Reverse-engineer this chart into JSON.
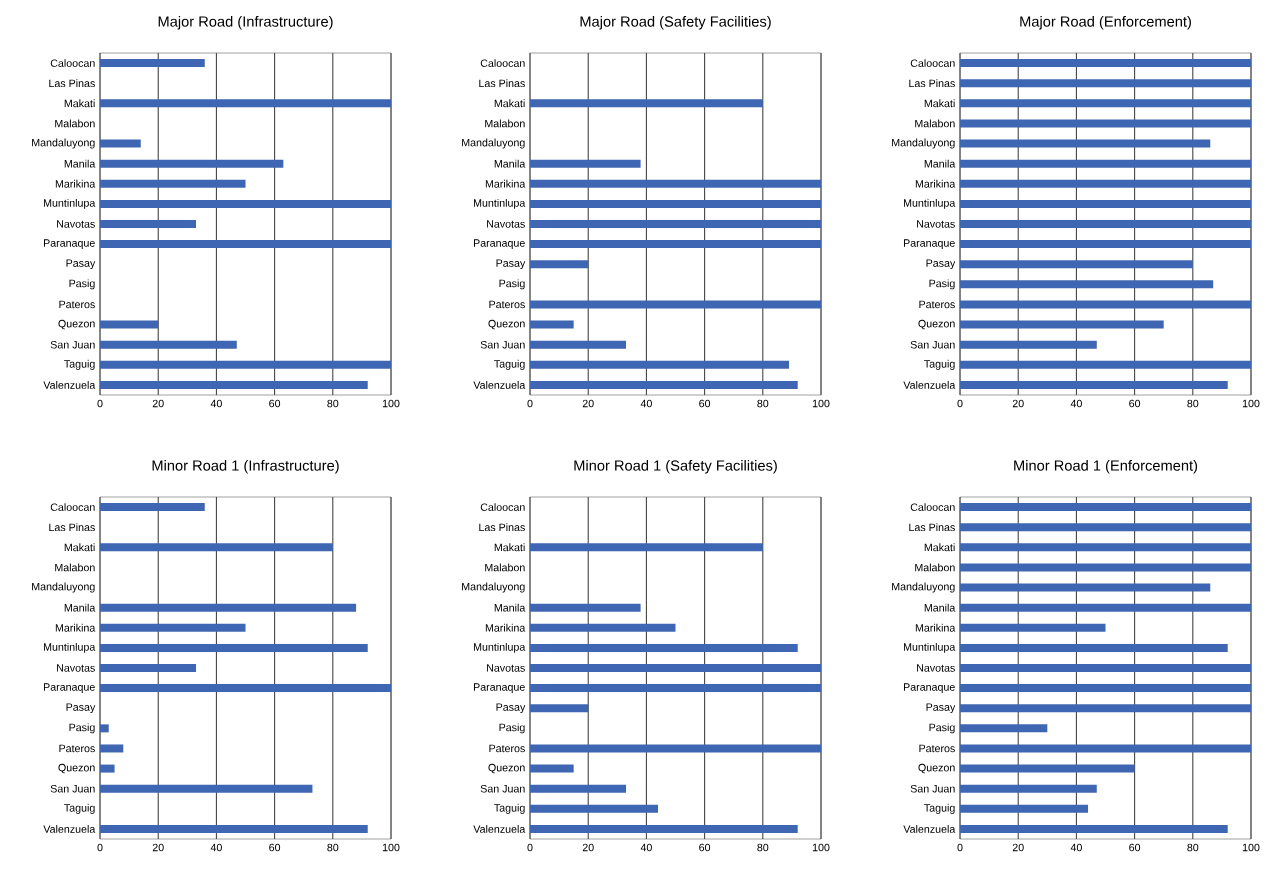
{
  "chart_data": [
    {
      "type": "bar",
      "orientation": "horizontal",
      "title": "Major Road (Infrastructure)",
      "categories": [
        "Caloocan",
        "Las Pinas",
        "Makati",
        "Malabon",
        "Mandaluyong",
        "Manila",
        "Marikina",
        "Muntinlupa",
        "Navotas",
        "Paranaque",
        "Pasay",
        "Pasig",
        "Pateros",
        "Quezon",
        "San Juan",
        "Taguig",
        "Valenzuela"
      ],
      "values": [
        36,
        0,
        100,
        0,
        14,
        63,
        50,
        100,
        33,
        100,
        0,
        0,
        0,
        20,
        47,
        100,
        92
      ],
      "color": "#3f66b2",
      "xlim": [
        0,
        100
      ],
      "xticks": [
        0,
        20,
        40,
        60,
        80,
        100
      ],
      "grid": "x"
    },
    {
      "type": "bar",
      "orientation": "horizontal",
      "title": "Major Road (Safety Facilities)",
      "categories": [
        "Caloocan",
        "Las Pinas",
        "Makati",
        "Malabon",
        "Mandaluyong",
        "Manila",
        "Marikina",
        "Muntinlupa",
        "Navotas",
        "Paranaque",
        "Pasay",
        "Pasig",
        "Pateros",
        "Quezon",
        "San Juan",
        "Taguig",
        "Valenzuela"
      ],
      "values": [
        0,
        0,
        80,
        0,
        0,
        38,
        100,
        100,
        100,
        100,
        20,
        0,
        100,
        15,
        33,
        89,
        92
      ],
      "color": "#3f66b2",
      "xlim": [
        0,
        100
      ],
      "xticks": [
        0,
        20,
        40,
        60,
        80,
        100
      ],
      "grid": "x"
    },
    {
      "type": "bar",
      "orientation": "horizontal",
      "title": "Major Road (Enforcement)",
      "categories": [
        "Caloocan",
        "Las Pinas",
        "Makati",
        "Malabon",
        "Mandaluyong",
        "Manila",
        "Marikina",
        "Muntinlupa",
        "Navotas",
        "Paranaque",
        "Pasay",
        "Pasig",
        "Pateros",
        "Quezon",
        "San Juan",
        "Taguig",
        "Valenzuela"
      ],
      "values": [
        100,
        100,
        100,
        100,
        86,
        100,
        100,
        100,
        100,
        100,
        80,
        87,
        100,
        70,
        47,
        100,
        92
      ],
      "color": "#3f66b2",
      "xlim": [
        0,
        100
      ],
      "xticks": [
        0,
        20,
        40,
        60,
        80,
        100
      ],
      "grid": "x"
    },
    {
      "type": "bar",
      "orientation": "horizontal",
      "title": "Minor Road 1 (Infrastructure)",
      "categories": [
        "Caloocan",
        "Las Pinas",
        "Makati",
        "Malabon",
        "Mandaluyong",
        "Manila",
        "Marikina",
        "Muntinlupa",
        "Navotas",
        "Paranaque",
        "Pasay",
        "Pasig",
        "Pateros",
        "Quezon",
        "San Juan",
        "Taguig",
        "Valenzuela"
      ],
      "values": [
        36,
        0,
        80,
        0,
        0,
        88,
        50,
        92,
        33,
        100,
        0,
        3,
        8,
        5,
        73,
        0,
        92
      ],
      "color": "#3f66b2",
      "xlim": [
        0,
        100
      ],
      "xticks": [
        0,
        20,
        40,
        60,
        80,
        100
      ],
      "grid": "x"
    },
    {
      "type": "bar",
      "orientation": "horizontal",
      "title": "Minor Road 1 (Safety Facilities)",
      "categories": [
        "Caloocan",
        "Las Pinas",
        "Makati",
        "Malabon",
        "Mandaluyong",
        "Manila",
        "Marikina",
        "Muntinlupa",
        "Navotas",
        "Paranaque",
        "Pasay",
        "Pasig",
        "Pateros",
        "Quezon",
        "San Juan",
        "Taguig",
        "Valenzuela"
      ],
      "values": [
        0,
        0,
        80,
        0,
        0,
        38,
        50,
        92,
        100,
        100,
        20,
        0,
        100,
        15,
        33,
        44,
        92
      ],
      "color": "#3f66b2",
      "xlim": [
        0,
        100
      ],
      "xticks": [
        0,
        20,
        40,
        60,
        80,
        100
      ],
      "grid": "x"
    },
    {
      "type": "bar",
      "orientation": "horizontal",
      "title": "Minor Road 1 (Enforcement)",
      "categories": [
        "Caloocan",
        "Las Pinas",
        "Makati",
        "Malabon",
        "Mandaluyong",
        "Manila",
        "Marikina",
        "Muntinlupa",
        "Navotas",
        "Paranaque",
        "Pasay",
        "Pasig",
        "Pateros",
        "Quezon",
        "San Juan",
        "Taguig",
        "Valenzuela"
      ],
      "values": [
        100,
        100,
        100,
        100,
        86,
        100,
        50,
        92,
        100,
        100,
        100,
        30,
        100,
        60,
        47,
        44,
        92
      ],
      "color": "#3f66b2",
      "xlim": [
        0,
        100
      ],
      "xticks": [
        0,
        20,
        40,
        60,
        80,
        100
      ],
      "grid": "x"
    }
  ]
}
